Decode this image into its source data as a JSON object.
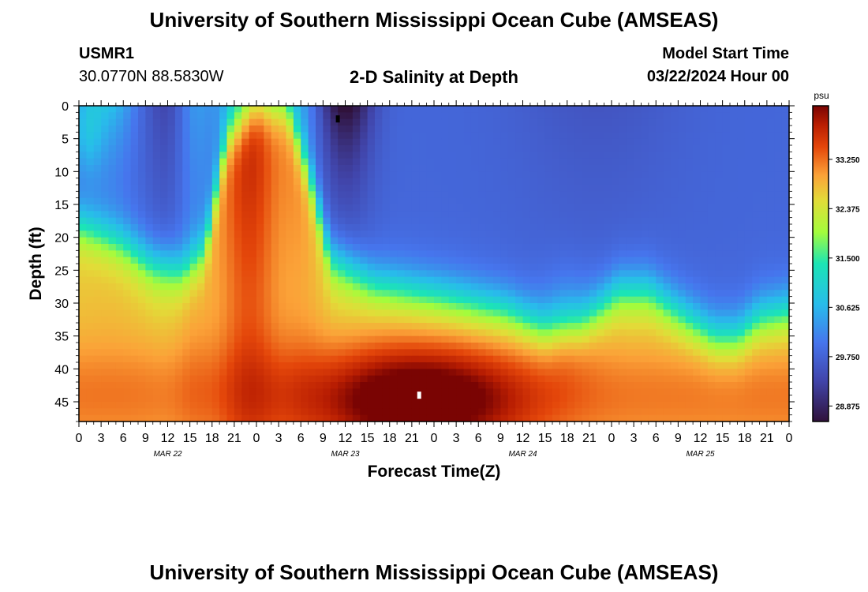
{
  "header": {
    "title": "University of Southern Mississippi Ocean Cube (AMSEAS)",
    "station_id": "USMR1",
    "station_coords": "30.0770N  88.5830W",
    "chart_title": "2-D Salinity at Depth",
    "model_start_label": "Model Start Time",
    "model_start_value": "03/22/2024 Hour 00"
  },
  "footer": {
    "title": "University of Southern Mississippi Ocean Cube (AMSEAS)"
  },
  "chart_data": {
    "type": "heatmap",
    "title": "2-D Salinity at Depth",
    "xlabel": "Forecast Time(Z)",
    "ylabel": "Depth (ft)",
    "x_range_hours": [
      0,
      96
    ],
    "x_tick_hours": [
      0,
      3,
      6,
      9,
      12,
      15,
      18,
      21,
      24,
      27,
      30,
      33,
      36,
      39,
      42,
      45,
      48,
      51,
      54,
      57,
      60,
      63,
      66,
      69,
      72,
      75,
      78,
      81,
      84,
      87,
      90,
      93,
      96
    ],
    "x_tick_labels": [
      "0",
      "3",
      "6",
      "9",
      "12",
      "15",
      "18",
      "21",
      "0",
      "3",
      "6",
      "9",
      "12",
      "15",
      "18",
      "21",
      "0",
      "3",
      "6",
      "9",
      "12",
      "15",
      "18",
      "21",
      "0",
      "3",
      "6",
      "9",
      "12",
      "15",
      "18",
      "21",
      "0"
    ],
    "date_labels": [
      {
        "label": "MAR 22",
        "hour": 12
      },
      {
        "label": "MAR 23",
        "hour": 36
      },
      {
        "label": "MAR 24",
        "hour": 60
      },
      {
        "label": "MAR 25",
        "hour": 84
      }
    ],
    "y_range_ft": [
      0,
      48
    ],
    "y_tick_values": [
      0,
      5,
      10,
      15,
      20,
      25,
      30,
      35,
      40,
      45
    ],
    "y_tick_labels": [
      "0",
      "5",
      "10",
      "15",
      "20",
      "25",
      "30",
      "35",
      "40",
      "45"
    ],
    "colorbar": {
      "unit": "psu",
      "range": [
        28.6,
        34.2
      ],
      "tick_values": [
        33.25,
        32.375,
        31.5,
        30.625,
        29.75,
        28.875
      ],
      "tick_labels": [
        "33.250",
        "32.375",
        "31.500",
        "30.625",
        "29.750",
        "28.875"
      ]
    },
    "markers": [
      {
        "kind": "min",
        "hour": 35,
        "depth_ft": 2,
        "color": "#000000"
      },
      {
        "kind": "max",
        "hour": 46,
        "depth_ft": 44,
        "color": "#ffffff"
      }
    ]
  }
}
